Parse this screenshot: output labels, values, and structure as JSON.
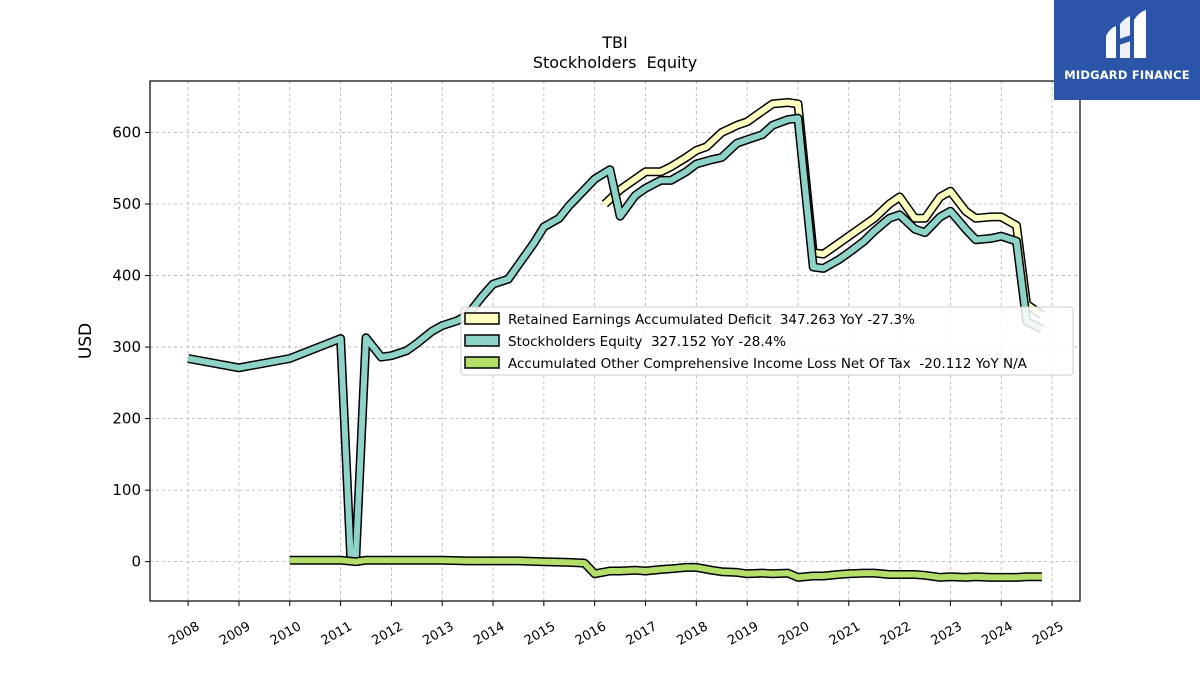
{
  "brand": {
    "name": "MIDGARD FINANCE",
    "bg": "#2a55a8"
  },
  "chart_data": {
    "type": "line",
    "title": "TBI",
    "subtitle": "Stockholders  Equity",
    "ylabel": "USD",
    "xlabel": "",
    "xlim": [
      2007.25,
      2025.55
    ],
    "ylim": [
      -55,
      672
    ],
    "yticks": [
      0,
      100,
      200,
      300,
      400,
      500,
      600
    ],
    "xticks": [
      2008,
      2009,
      2010,
      2011,
      2012,
      2013,
      2014,
      2015,
      2016,
      2017,
      2018,
      2019,
      2020,
      2021,
      2022,
      2023,
      2024,
      2025
    ],
    "grid": true,
    "legend_position": "center-right",
    "series": [
      {
        "name": "Retained Earnings Accumulated Deficit",
        "legend_label": "Retained Earnings Accumulated Deficit  347.263 YoY -27.3%",
        "color": "#ffffbf",
        "x": [
          2016.2,
          2016.5,
          2016.8,
          2017.0,
          2017.3,
          2017.5,
          2017.8,
          2018.0,
          2018.2,
          2018.5,
          2018.8,
          2019.0,
          2019.3,
          2019.5,
          2019.8,
          2020.0,
          2020.3,
          2020.5,
          2020.8,
          2021.0,
          2021.3,
          2021.5,
          2021.8,
          2022.0,
          2022.3,
          2022.5,
          2022.8,
          2023.0,
          2023.3,
          2023.5,
          2023.8,
          2024.0,
          2024.3,
          2024.5,
          2024.8
        ],
        "y": [
          500,
          520,
          535,
          545,
          545,
          552,
          565,
          575,
          580,
          600,
          610,
          615,
          630,
          640,
          642,
          640,
          432,
          430,
          445,
          455,
          470,
          480,
          500,
          510,
          480,
          480,
          510,
          518,
          490,
          480,
          482,
          482,
          470,
          360,
          345
        ]
      },
      {
        "name": "Stockholders Equity",
        "legend_label": "Stockholders Equity  327.152 YoY -28.4%",
        "color": "#8dd3c7",
        "x": [
          2008.0,
          2009.0,
          2010.0,
          2010.5,
          2011.0,
          2011.2,
          2011.3,
          2011.5,
          2011.8,
          2012.0,
          2012.3,
          2012.5,
          2012.8,
          2013.0,
          2013.3,
          2013.5,
          2013.8,
          2014.0,
          2014.3,
          2014.5,
          2014.8,
          2015.0,
          2015.3,
          2015.5,
          2015.8,
          2016.0,
          2016.3,
          2016.5,
          2016.8,
          2017.0,
          2017.3,
          2017.5,
          2017.8,
          2018.0,
          2018.3,
          2018.5,
          2018.8,
          2019.0,
          2019.3,
          2019.5,
          2019.8,
          2020.0,
          2020.3,
          2020.5,
          2020.8,
          2021.0,
          2021.3,
          2021.5,
          2021.8,
          2022.0,
          2022.3,
          2022.5,
          2022.8,
          2023.0,
          2023.3,
          2023.5,
          2023.8,
          2024.0,
          2024.3,
          2024.5,
          2024.8
        ],
        "y": [
          284,
          271,
          284,
          298,
          312,
          5,
          5,
          313,
          286,
          288,
          295,
          305,
          322,
          330,
          337,
          345,
          372,
          388,
          395,
          415,
          445,
          468,
          480,
          498,
          520,
          535,
          548,
          483,
          512,
          522,
          533,
          533,
          545,
          556,
          562,
          565,
          585,
          590,
          597,
          610,
          618,
          620,
          412,
          410,
          422,
          432,
          448,
          462,
          480,
          485,
          465,
          460,
          482,
          490,
          465,
          450,
          452,
          455,
          448,
          336,
          325
        ]
      },
      {
        "name": "Accumulated Other Comprehensive Income Loss Net Of Tax",
        "legend_label": "Accumulated Other Comprehensive Income Loss Net Of Tax  -20.112 YoY N/A",
        "color": "#b3de69",
        "x": [
          2010.0,
          2010.5,
          2011.0,
          2011.3,
          2011.5,
          2012.0,
          2012.5,
          2013.0,
          2013.5,
          2014.0,
          2014.5,
          2015.0,
          2015.5,
          2015.8,
          2016.0,
          2016.3,
          2016.5,
          2016.8,
          2017.0,
          2017.3,
          2017.5,
          2017.8,
          2018.0,
          2018.3,
          2018.5,
          2018.8,
          2019.0,
          2019.3,
          2019.5,
          2019.8,
          2020.0,
          2020.3,
          2020.5,
          2020.8,
          2021.0,
          2021.3,
          2021.5,
          2021.8,
          2022.0,
          2022.3,
          2022.5,
          2022.8,
          2023.0,
          2023.3,
          2023.5,
          2023.8,
          2024.0,
          2024.3,
          2024.5,
          2024.8
        ],
        "y": [
          2,
          2,
          2,
          0,
          2,
          2,
          2,
          2,
          1,
          1,
          1,
          0,
          -1,
          -2,
          -17,
          -13,
          -13,
          -12,
          -13,
          -11,
          -10,
          -8,
          -8,
          -12,
          -14,
          -15,
          -17,
          -16,
          -17,
          -16,
          -22,
          -20,
          -20,
          -18,
          -17,
          -16,
          -16,
          -18,
          -18,
          -18,
          -19,
          -22,
          -21,
          -22,
          -21,
          -22,
          -22,
          -22,
          -21,
          -21
        ]
      }
    ]
  }
}
